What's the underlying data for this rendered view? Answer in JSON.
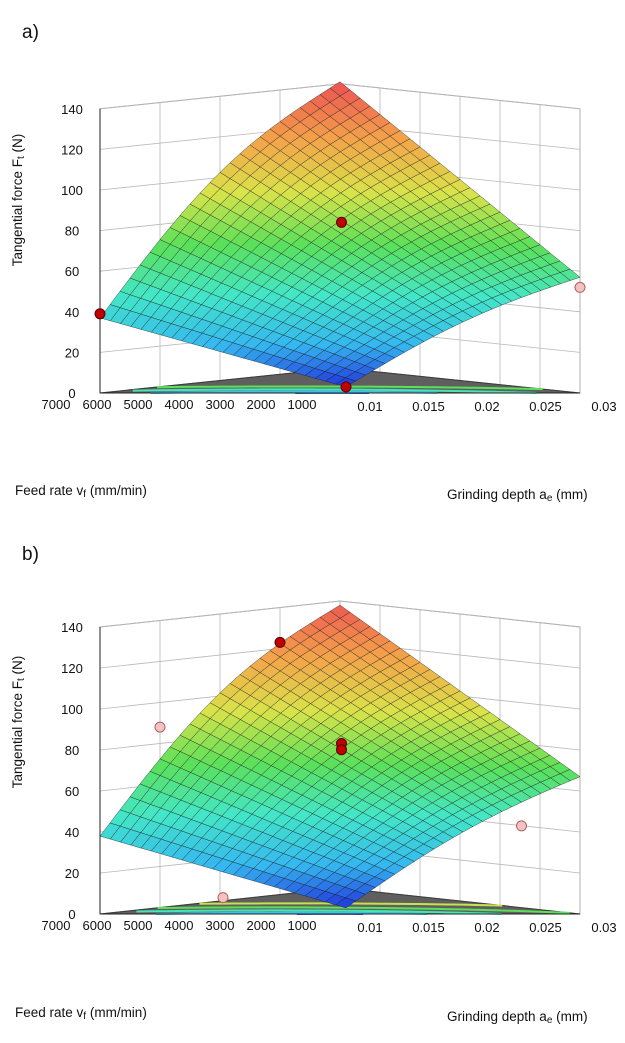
{
  "chart_data": [
    {
      "type": "surface3d",
      "panel_label": "a)",
      "zlabel": "Tangential force Ft (N)",
      "zlabel_main": "Tangential force F",
      "zlabel_sub": "t",
      "zlabel_unit": " (N)",
      "xlabel": "Grinding depth ae (mm)",
      "xlabel_main": "Grinding depth a",
      "xlabel_sub": "e",
      "xlabel_unit": " (mm)",
      "ylabel": "Feed rate vf (mm/min)",
      "ylabel_main": "Feed rate v",
      "ylabel_sub": "f",
      "ylabel_unit": " (mm/min)",
      "x_ticks": [
        "0.01",
        "0.015",
        "0.02",
        "0.025",
        "0.03"
      ],
      "y_ticks": [
        "1000",
        "2000",
        "3000",
        "4000",
        "5000",
        "6000",
        "7000"
      ],
      "z_ticks": [
        "0",
        "20",
        "40",
        "60",
        "80",
        "100",
        "120",
        "140"
      ],
      "z_tick_labels": [
        "0",
        "20",
        "40",
        "60",
        "80",
        "100",
        "120",
        "140"
      ],
      "xlim": [
        0.01,
        0.03
      ],
      "ylim": [
        1000,
        7000
      ],
      "zlim": [
        0,
        140
      ],
      "surface_corners": {
        "ae_min_vf_min": 3,
        "ae_max_vf_min": 57,
        "ae_min_vf_max": 37,
        "ae_max_vf_max": 141
      },
      "points": [
        {
          "ae": 0.01,
          "vf": 1000,
          "Ft": 3,
          "above": true
        },
        {
          "ae": 0.02,
          "vf": 4000,
          "Ft": 81,
          "above": true
        },
        {
          "ae": 0.01,
          "vf": 7000,
          "Ft": 39,
          "above": true
        },
        {
          "ae": 0.03,
          "vf": 1000,
          "Ft": 52,
          "above": false
        }
      ],
      "colormap": [
        "#1f1fd8",
        "#35b7f0",
        "#43e6c8",
        "#5be05a",
        "#d9e34a",
        "#f3a34a",
        "#ec5353"
      ],
      "contour_levels": [
        10,
        30,
        50,
        70
      ]
    },
    {
      "type": "surface3d",
      "panel_label": "b)",
      "zlabel": "Tangential force Ft (N)",
      "zlabel_main": "Tangential force F",
      "zlabel_sub": "t",
      "zlabel_unit": " (N)",
      "xlabel": "Grinding depth ae (mm)",
      "xlabel_main": "Grinding depth a",
      "xlabel_sub": "e",
      "xlabel_unit": " (mm)",
      "ylabel": "Feed rate vf (mm/min)",
      "ylabel_main": "Feed rate v",
      "ylabel_sub": "f",
      "ylabel_unit": " (mm/min)",
      "x_ticks": [
        "0.01",
        "0.015",
        "0.02",
        "0.025",
        "0.03"
      ],
      "y_ticks": [
        "1000",
        "2000",
        "3000",
        "4000",
        "5000",
        "6000",
        "7000"
      ],
      "z_ticks": [
        "0",
        "20",
        "40",
        "60",
        "80",
        "100",
        "120",
        "140"
      ],
      "z_tick_labels": [
        "0",
        "20",
        "40",
        "60",
        "80",
        "100",
        "120",
        "140"
      ],
      "xlim": [
        0.01,
        0.03
      ],
      "ylim": [
        1000,
        7000
      ],
      "zlim": [
        0,
        140
      ],
      "surface_corners": {
        "ae_min_vf_min": 3,
        "ae_max_vf_min": 67,
        "ae_min_vf_max": 38,
        "ae_max_vf_max": 138
      },
      "points": [
        {
          "ae": 0.025,
          "vf": 7000,
          "Ft": 123,
          "above": true
        },
        {
          "ae": 0.02,
          "vf": 4000,
          "Ft": 80,
          "above": true
        },
        {
          "ae": 0.02,
          "vf": 4000,
          "Ft": 77,
          "above": true
        },
        {
          "ae": 0.015,
          "vf": 7000,
          "Ft": 88,
          "above": false
        },
        {
          "ae": 0.01,
          "vf": 4000,
          "Ft": 8,
          "above": false
        },
        {
          "ae": 0.025,
          "vf": 1000,
          "Ft": 43,
          "above": false
        }
      ],
      "colormap": [
        "#1f1fd8",
        "#35b7f0",
        "#43e6c8",
        "#5be05a",
        "#d9e34a",
        "#f3a34a",
        "#ec5353"
      ],
      "contour_levels": [
        10,
        30,
        50,
        70,
        90
      ]
    }
  ]
}
